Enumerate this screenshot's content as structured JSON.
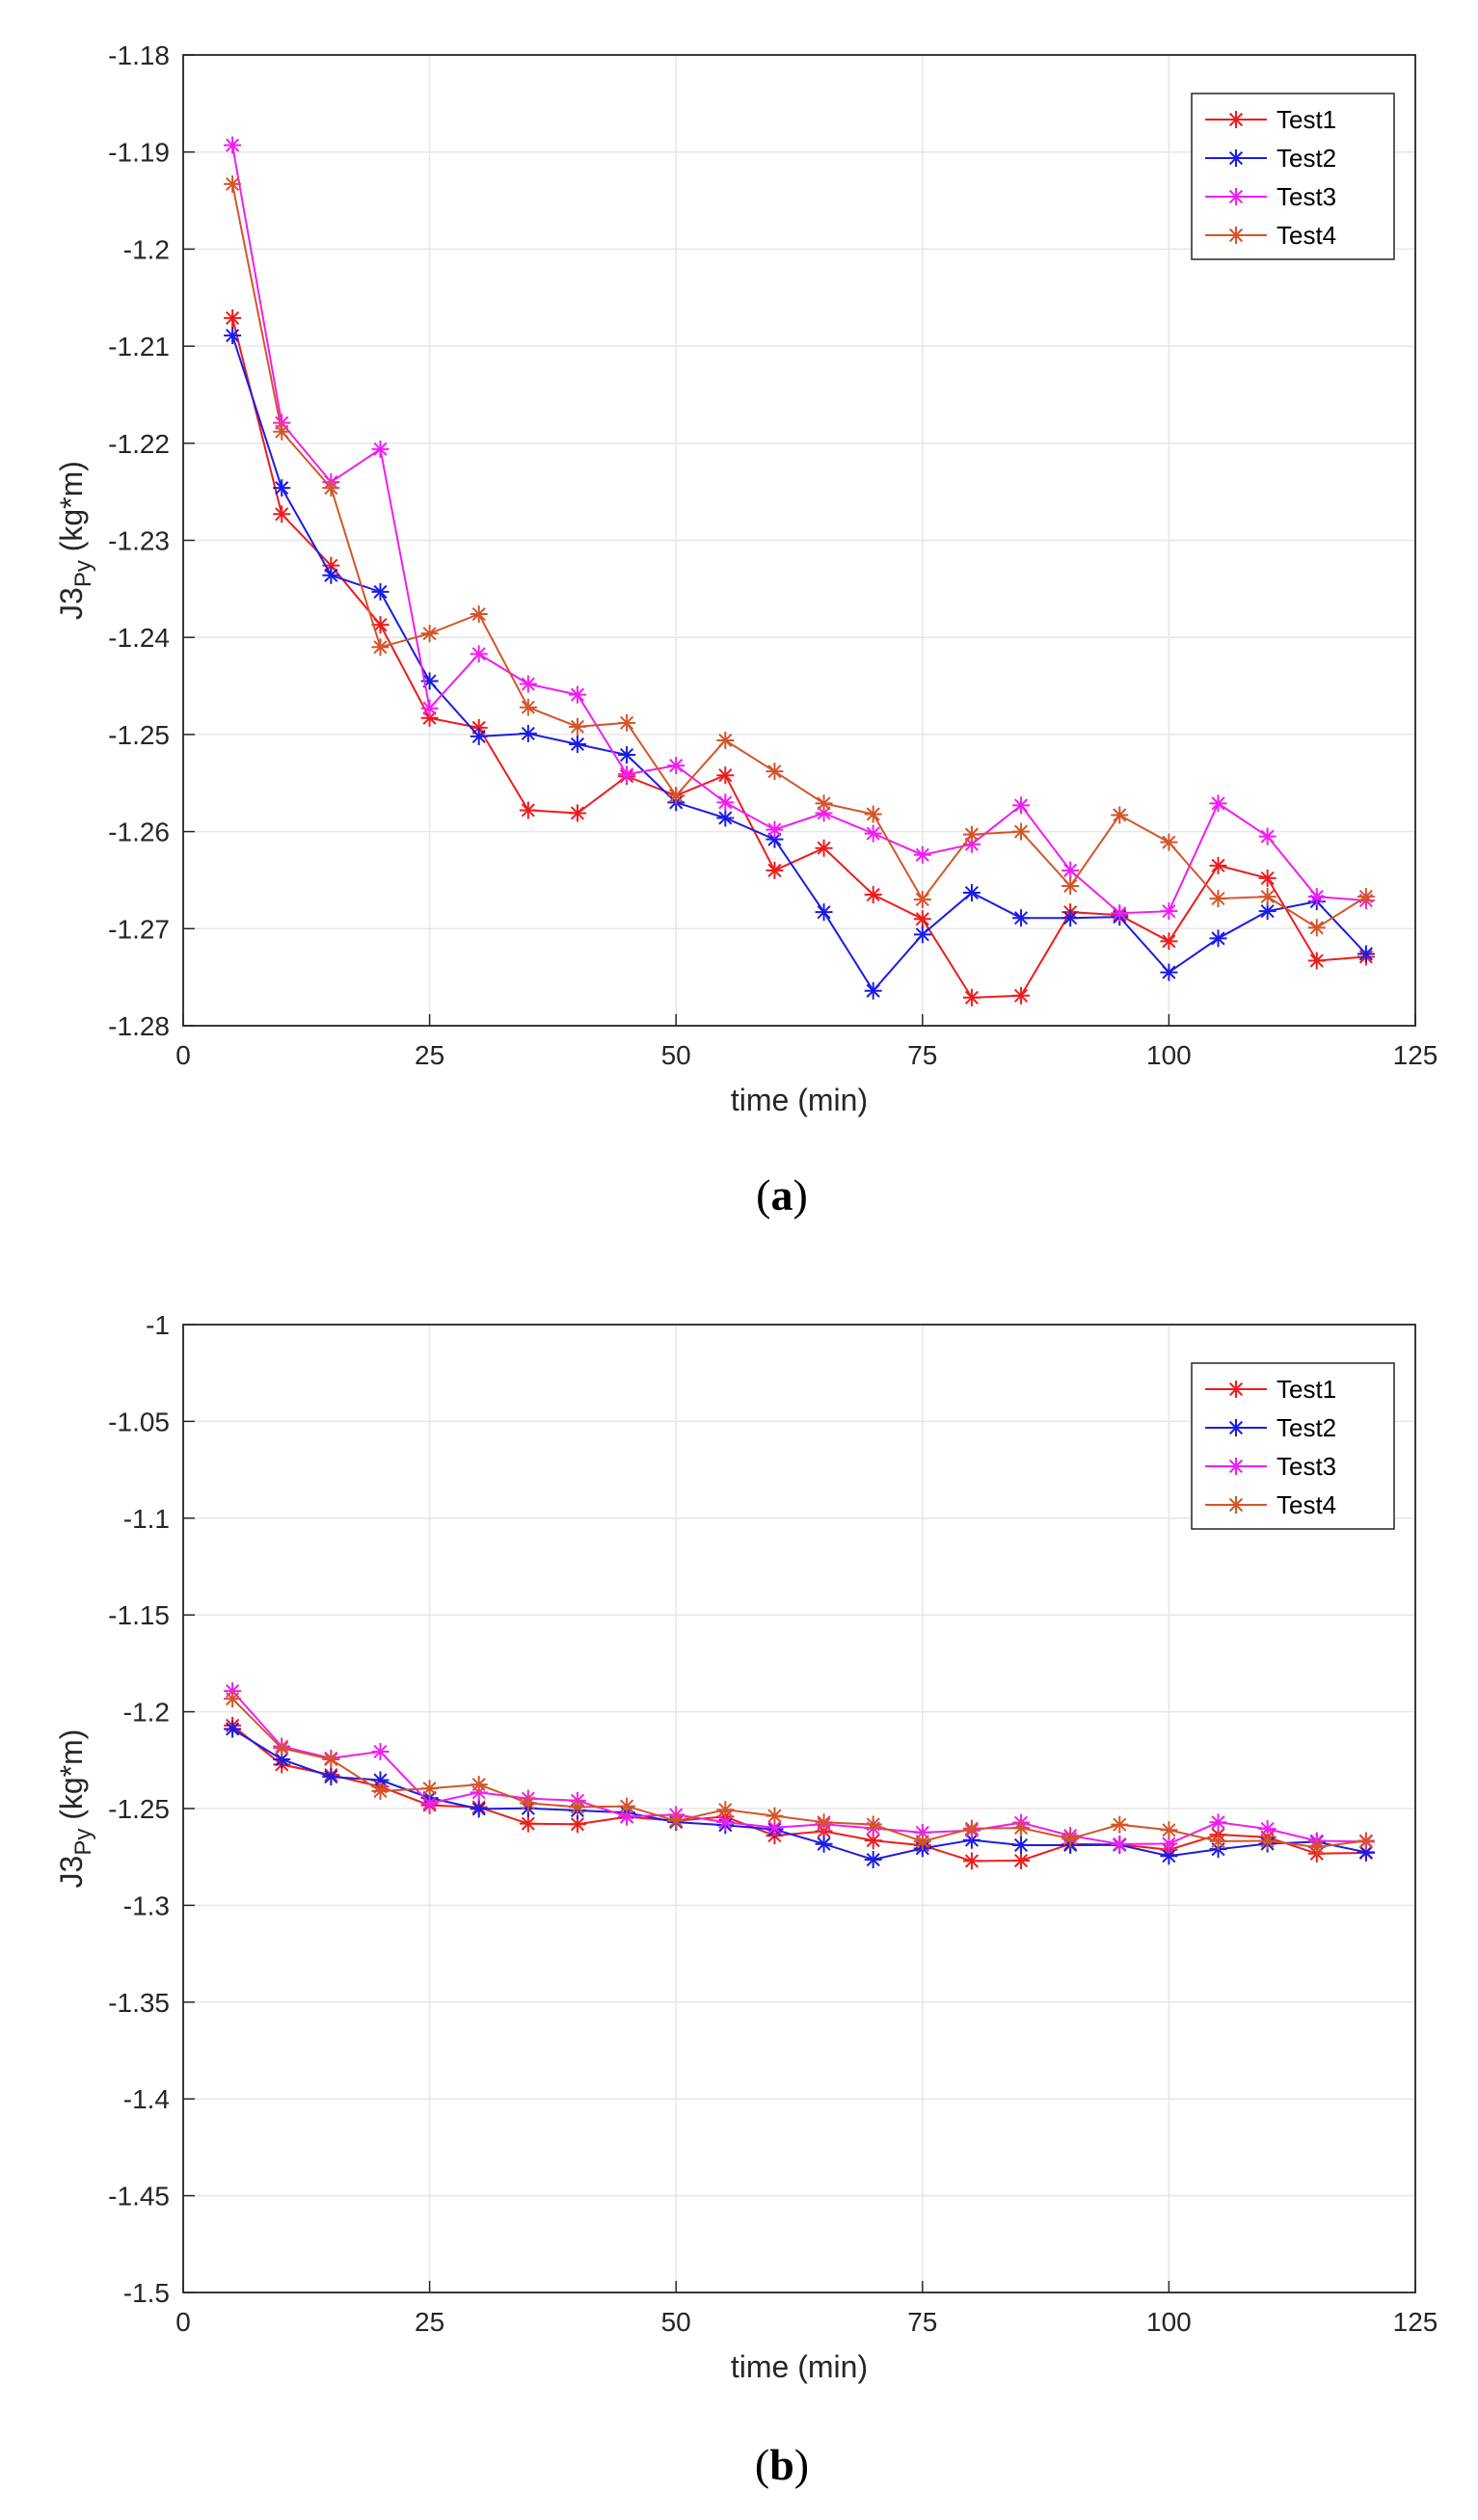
{
  "chart_data": [
    {
      "type": "line",
      "panel_label": "a",
      "panel_open": "(",
      "panel_close": ")",
      "xlabel": "time (min)",
      "ylabel": "J3",
      "ylabel_sub": "Py",
      "ylabel_unit": " (kg*m)",
      "xlim": [
        0,
        125
      ],
      "ylim": [
        -1.28,
        -1.18
      ],
      "xticks": [
        "0",
        "25",
        "50",
        "75",
        "100",
        "125"
      ],
      "xtick_values": [
        0,
        25,
        50,
        75,
        100,
        125
      ],
      "yticks": [
        "-1.18",
        "-1.19",
        "-1.2",
        "-1.21",
        "-1.22",
        "-1.23",
        "-1.24",
        "-1.25",
        "-1.26",
        "-1.27",
        "-1.28"
      ],
      "ytick_values": [
        -1.18,
        -1.19,
        -1.2,
        -1.21,
        -1.22,
        -1.23,
        -1.24,
        -1.25,
        -1.26,
        -1.27,
        -1.28
      ],
      "grid": true,
      "legend_position": "top-right",
      "x": [
        5,
        10,
        15,
        20,
        25,
        30,
        35,
        40,
        45,
        50,
        55,
        60,
        65,
        70,
        75,
        80,
        85,
        90,
        95,
        100,
        105,
        110,
        115,
        120
      ],
      "series": [
        {
          "name": "Test1",
          "color": "#ee1c1c",
          "values": [
            -1.2071,
            -1.2273,
            -1.2326,
            -1.2387,
            -1.2483,
            -1.2493,
            -1.2578,
            -1.2581,
            -1.2543,
            -1.2563,
            -1.2542,
            -1.264,
            -1.2617,
            -1.2665,
            -1.269,
            -1.2771,
            -1.2769,
            -1.2683,
            -1.2686,
            -1.2713,
            -1.2635,
            -1.2648,
            -1.2733,
            -1.2729
          ]
        },
        {
          "name": "Test2",
          "color": "#1c1ce6",
          "values": [
            -1.2089,
            -1.2246,
            -1.2336,
            -1.2353,
            -1.2445,
            -1.2502,
            -1.2499,
            -1.251,
            -1.2521,
            -1.257,
            -1.2586,
            -1.2608,
            -1.2683,
            -1.2764,
            -1.2706,
            -1.2663,
            -1.2689,
            -1.2689,
            -1.2688,
            -1.2745,
            -1.271,
            -1.2682,
            -1.2672,
            -1.2726
          ]
        },
        {
          "name": "Test3",
          "color": "#f01ef0",
          "values": [
            -1.1893,
            -1.2179,
            -1.224,
            -1.2206,
            -1.2473,
            -1.2417,
            -1.2448,
            -1.2459,
            -1.2541,
            -1.2532,
            -1.257,
            -1.2598,
            -1.2581,
            -1.2602,
            -1.2624,
            -1.2613,
            -1.2573,
            -1.264,
            -1.2684,
            -1.2682,
            -1.2571,
            -1.2605,
            -1.2667,
            -1.2671
          ]
        },
        {
          "name": "Test4",
          "color": "#d4552a",
          "values": [
            -1.1933,
            -1.2188,
            -1.2246,
            -1.241,
            -1.2396,
            -1.2376,
            -1.2472,
            -1.2492,
            -1.2488,
            -1.2563,
            -1.2506,
            -1.2538,
            -1.2571,
            -1.2582,
            -1.267,
            -1.2603,
            -1.26,
            -1.2656,
            -1.2583,
            -1.2611,
            -1.2669,
            -1.2667,
            -1.2699,
            -1.2667
          ]
        }
      ]
    },
    {
      "type": "line",
      "panel_label": "b",
      "panel_open": "(",
      "panel_close": ")",
      "xlabel": "time (min)",
      "ylabel": "J3",
      "ylabel_sub": "Py",
      "ylabel_unit": " (kg*m)",
      "xlim": [
        0,
        125
      ],
      "ylim": [
        -1.5,
        -1.0
      ],
      "xticks": [
        "0",
        "25",
        "50",
        "75",
        "100",
        "125"
      ],
      "xtick_values": [
        0,
        25,
        50,
        75,
        100,
        125
      ],
      "yticks": [
        "-1",
        "-1.05",
        "-1.1",
        "-1.15",
        "-1.2",
        "-1.25",
        "-1.3",
        "-1.35",
        "-1.4",
        "-1.45",
        "-1.5"
      ],
      "ytick_values": [
        -1.0,
        -1.05,
        -1.1,
        -1.15,
        -1.2,
        -1.25,
        -1.3,
        -1.35,
        -1.4,
        -1.45,
        -1.5
      ],
      "grid": true,
      "legend_position": "top-right",
      "x": [
        5,
        10,
        15,
        20,
        25,
        30,
        35,
        40,
        45,
        50,
        55,
        60,
        65,
        70,
        75,
        80,
        85,
        90,
        95,
        100,
        105,
        110,
        115,
        120
      ],
      "series": [
        {
          "name": "Test1",
          "color": "#ee1c1c",
          "values": [
            -1.2071,
            -1.2273,
            -1.2326,
            -1.2387,
            -1.2483,
            -1.2493,
            -1.2578,
            -1.2581,
            -1.2543,
            -1.2563,
            -1.2542,
            -1.264,
            -1.2617,
            -1.2665,
            -1.269,
            -1.2771,
            -1.2769,
            -1.2683,
            -1.2686,
            -1.2713,
            -1.2635,
            -1.2648,
            -1.2733,
            -1.2729
          ]
        },
        {
          "name": "Test2",
          "color": "#1c1ce6",
          "values": [
            -1.2089,
            -1.2246,
            -1.2336,
            -1.2353,
            -1.2445,
            -1.2502,
            -1.2499,
            -1.251,
            -1.2521,
            -1.257,
            -1.2586,
            -1.2608,
            -1.2683,
            -1.2764,
            -1.2706,
            -1.2663,
            -1.2689,
            -1.2689,
            -1.2688,
            -1.2745,
            -1.271,
            -1.2682,
            -1.2672,
            -1.2726
          ]
        },
        {
          "name": "Test3",
          "color": "#f01ef0",
          "values": [
            -1.1893,
            -1.2179,
            -1.224,
            -1.2206,
            -1.2473,
            -1.2417,
            -1.2448,
            -1.2459,
            -1.2541,
            -1.2532,
            -1.257,
            -1.2598,
            -1.2581,
            -1.2602,
            -1.2624,
            -1.2613,
            -1.2573,
            -1.264,
            -1.2684,
            -1.2682,
            -1.2571,
            -1.2605,
            -1.2667,
            -1.2671
          ]
        },
        {
          "name": "Test4",
          "color": "#d4552a",
          "values": [
            -1.1933,
            -1.2188,
            -1.2246,
            -1.241,
            -1.2396,
            -1.2376,
            -1.2472,
            -1.2492,
            -1.2488,
            -1.2563,
            -1.2506,
            -1.2538,
            -1.2571,
            -1.2582,
            -1.267,
            -1.2603,
            -1.26,
            -1.2656,
            -1.2583,
            -1.2611,
            -1.2669,
            -1.2667,
            -1.2699,
            -1.2667
          ]
        }
      ]
    }
  ]
}
